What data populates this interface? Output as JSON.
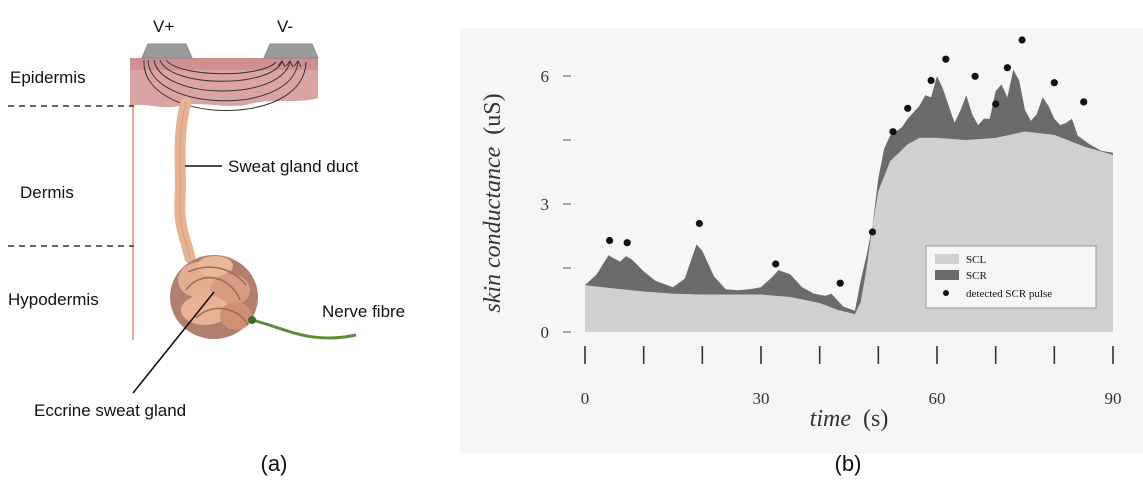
{
  "panel_a": {
    "electrode_pos": "V+",
    "electrode_neg": "V-",
    "layers": [
      "Epidermis",
      "Dermis",
      "Hypodermis"
    ],
    "duct_label": "Sweat gland duct",
    "nerve_label": "Nerve fibre",
    "gland_label": "Eccrine sweat gland",
    "caption": "(a)",
    "colors": {
      "skin": "#d9a09e",
      "duct": "#e8b394",
      "nerve": "#5e8c3a",
      "electrode": "#9b9b9b"
    }
  },
  "panel_b": {
    "caption": "(b)",
    "colors": {
      "scl": "#d0d0d0",
      "scr": "#6b6b6b",
      "pulse": "#111111",
      "background": "#f6f6f6"
    }
  },
  "chart_data": {
    "type": "area",
    "xlabel_italic": "time",
    "xlabel_unit": "(s)",
    "ylabel_italic": "skin conductance",
    "ylabel_unit": "(uS)",
    "xlim": [
      0,
      90
    ],
    "ylim": [
      0,
      6
    ],
    "xticks": [
      0,
      30,
      60,
      90
    ],
    "yticks": [
      0,
      3,
      6
    ],
    "x_minor_ticks": [
      0,
      10,
      20,
      30,
      40,
      50,
      60,
      70,
      80,
      90
    ],
    "y_minor_ticks": [
      0,
      1.5,
      3,
      4.5,
      6
    ],
    "legend_position": "bottom-right",
    "legend": [
      "SCL",
      "SCR",
      "detected SCR pulse"
    ],
    "series": [
      {
        "name": "SCL",
        "x": [
          0,
          5,
          10,
          15,
          20,
          25,
          30,
          35,
          40,
          43,
          46,
          47,
          48,
          49,
          50,
          52,
          55,
          57,
          60,
          65,
          70,
          75,
          80,
          85,
          90
        ],
        "values": [
          1.1,
          1.02,
          0.95,
          0.9,
          0.88,
          0.88,
          0.88,
          0.82,
          0.68,
          0.52,
          0.42,
          0.7,
          1.5,
          2.5,
          3.3,
          4.0,
          4.4,
          4.55,
          4.55,
          4.5,
          4.55,
          4.7,
          4.62,
          4.35,
          4.15
        ]
      },
      {
        "name": "SCR",
        "x": [
          0,
          2,
          4,
          5,
          6,
          7,
          8,
          10,
          12,
          15,
          17,
          19,
          20,
          22,
          24,
          26,
          28,
          30,
          32,
          33,
          35,
          37,
          39,
          41,
          42,
          44,
          46,
          47,
          48,
          49,
          50,
          51,
          52,
          53,
          54,
          55,
          57,
          58,
          59,
          60,
          61,
          62,
          63,
          64,
          65,
          66,
          67,
          68,
          69,
          70,
          71,
          72,
          73,
          74,
          75,
          76,
          77,
          78,
          79,
          80,
          81,
          82,
          83,
          84,
          85,
          86,
          88,
          90
        ],
        "values": [
          1.1,
          1.35,
          1.8,
          1.72,
          1.65,
          1.78,
          1.7,
          1.42,
          1.2,
          1.05,
          1.25,
          2.05,
          1.9,
          1.3,
          1.0,
          0.98,
          1.0,
          1.05,
          1.3,
          1.45,
          1.35,
          1.05,
          0.9,
          0.85,
          0.9,
          0.6,
          0.5,
          1.2,
          1.8,
          2.5,
          3.6,
          4.3,
          4.6,
          4.7,
          4.8,
          5.0,
          5.3,
          5.55,
          5.5,
          6.0,
          5.7,
          5.3,
          4.9,
          5.2,
          5.55,
          5.1,
          4.85,
          5.0,
          5.0,
          5.65,
          5.8,
          5.5,
          6.15,
          5.9,
          5.2,
          4.95,
          5.1,
          5.5,
          5.3,
          5.0,
          4.85,
          4.9,
          5.0,
          4.6,
          4.5,
          4.4,
          4.25,
          4.2
        ]
      }
    ],
    "pulses": {
      "x": [
        4.2,
        7.2,
        19.5,
        32.5,
        43.5,
        49,
        52.5,
        55,
        59,
        61.5,
        66.5,
        70,
        72,
        74.5,
        80,
        85
      ],
      "y": [
        2.05,
        2.0,
        2.45,
        1.5,
        1.05,
        2.25,
        4.6,
        5.15,
        5.8,
        6.3,
        5.9,
        5.25,
        6.1,
        6.75,
        5.75,
        5.3
      ]
    }
  }
}
